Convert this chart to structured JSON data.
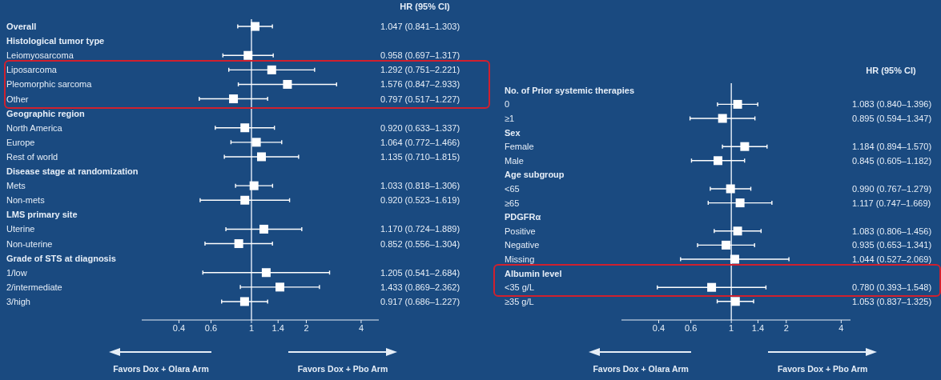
{
  "chart_data": [
    {
      "type": "scatter",
      "orientation": "horizontal",
      "log": "x",
      "marker": "square",
      "color": "#ffffff",
      "grid": false,
      "categories": [
        "Overall",
        "Histological tumor type",
        "Leiomyosarcoma",
        "Liposarcoma",
        "Pleomorphic sarcoma",
        "Other",
        "Geographic region",
        "North America",
        "Europe",
        "Rest of world",
        "Disease stage at randomization",
        "Mets",
        "Non-mets",
        "LMS primary site",
        "Uterine",
        "Non-uterine",
        "Grade of STS at diagnosis",
        "1/low",
        "2/intermediate",
        "3/high"
      ],
      "values": [
        1.047,
        null,
        0.958,
        1.292,
        1.576,
        0.797,
        null,
        0.92,
        1.064,
        1.135,
        null,
        1.033,
        0.92,
        null,
        1.17,
        0.852,
        null,
        1.205,
        1.433,
        0.917
      ],
      "errors": [
        [
          0.841,
          1.303
        ],
        null,
        [
          0.697,
          1.317
        ],
        [
          0.751,
          2.221
        ],
        [
          0.847,
          2.933
        ],
        [
          0.517,
          1.227
        ],
        null,
        [
          0.633,
          1.337
        ],
        [
          0.772,
          1.466
        ],
        [
          0.71,
          1.815
        ],
        null,
        [
          0.818,
          1.306
        ],
        [
          0.523,
          1.619
        ],
        null,
        [
          0.724,
          1.889
        ],
        [
          0.556,
          1.304
        ],
        null,
        [
          0.541,
          2.684
        ],
        [
          0.869,
          2.362
        ],
        [
          0.686,
          1.227
        ]
      ],
      "value_labels": [
        "1.047 (0.841–1.303)",
        null,
        "0.958 (0.697–1.317)",
        "1.292 (0.751–2.221)",
        "1.576 (0.847–2.933)",
        "0.797 (0.517–1.227)",
        null,
        "0.920 (0.633–1.337)",
        "1.064 (0.772–1.466)",
        "1.135 (0.710–1.815)",
        null,
        "1.033 (0.818–1.306)",
        "0.920 (0.523–1.619)",
        null,
        "1.170 (0.724–1.889)",
        "0.852 (0.556–1.304)",
        null,
        "1.205 (0.541–2.684)",
        "1.433 (0.869–2.362)",
        "0.917 (0.686–1.227)"
      ],
      "xlim": [
        0.25,
        5
      ],
      "xticks": [
        0.4,
        0.6,
        1,
        1.4,
        2,
        4
      ],
      "ref_lines": [
        {
          "axis": "x",
          "value": 1,
          "color": "#dce6f2"
        }
      ],
      "annotations": [
        "HR (95% CI)",
        "Favors Dox + Olara Arm",
        "Favors Dox + Pbo Arm"
      ]
    },
    {
      "type": "scatter",
      "orientation": "horizontal",
      "log": "x",
      "marker": "square",
      "color": "#ffffff",
      "grid": false,
      "categories": [
        "No. of Prior systemic therapies",
        "0",
        "≥1",
        "Sex",
        "Female",
        "Male",
        "Age subgroup",
        "<65",
        "≥65",
        "PDGFRα",
        "Positive",
        "Negative",
        "Missing",
        "Albumin level",
        "<35 g/L",
        "≥35 g/L"
      ],
      "values": [
        null,
        1.083,
        0.895,
        null,
        1.184,
        0.845,
        null,
        0.99,
        1.117,
        null,
        1.083,
        0.935,
        1.044,
        null,
        0.78,
        1.053
      ],
      "errors": [
        null,
        [
          0.84,
          1.396
        ],
        [
          0.594,
          1.347
        ],
        null,
        [
          0.894,
          1.57
        ],
        [
          0.605,
          1.182
        ],
        null,
        [
          0.767,
          1.279
        ],
        [
          0.747,
          1.669
        ],
        null,
        [
          0.806,
          1.456
        ],
        [
          0.653,
          1.341
        ],
        [
          0.527,
          2.069
        ],
        null,
        [
          0.393,
          1.548
        ],
        [
          0.837,
          1.325
        ]
      ],
      "value_labels": [
        null,
        "1.083 (0.840–1.396)",
        "0.895 (0.594–1.347)",
        null,
        "1.184 (0.894–1.570)",
        "0.845 (0.605–1.182)",
        null,
        "0.990 (0.767–1.279)",
        "1.117 (0.747–1.669)",
        null,
        "1.083 (0.806–1.456)",
        "0.935 (0.653–1.341)",
        "1.044 (0.527–2.069)",
        null,
        "0.780 (0.393–1.548)",
        "1.053 (0.837–1.325)"
      ],
      "xlim": [
        0.25,
        4.5
      ],
      "xticks": [
        0.4,
        0.6,
        1,
        1.4,
        2,
        4
      ],
      "ref_lines": [
        {
          "axis": "x",
          "value": 1,
          "color": "#dce6f2"
        }
      ],
      "annotations": [
        "HR (95% CI)",
        "Favors Dox + Olara Arm",
        "Favors Dox + Pbo Arm"
      ]
    }
  ]
}
